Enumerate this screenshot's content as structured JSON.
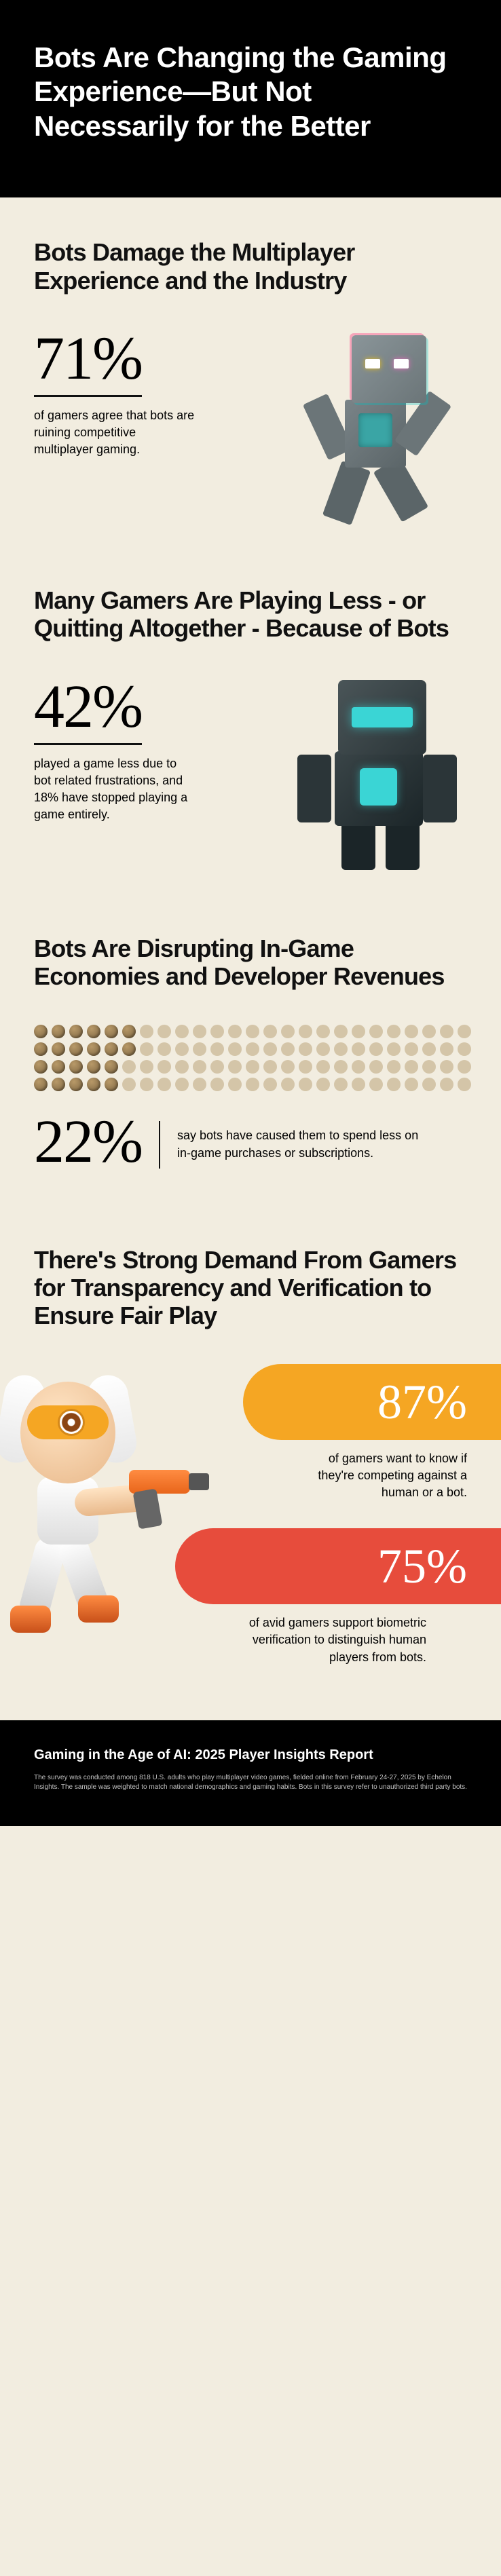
{
  "header": {
    "title": "Bots Are Changing the Gaming Experience—But Not Necessarily for the Better"
  },
  "section1": {
    "title": "Bots Damage the Multiplayer Experience and the Industry",
    "pct": "71%",
    "desc": "of gamers agree that bots are ruining competitive multiplayer gaming."
  },
  "section2": {
    "title": "Many Gamers Are Playing Less - or Quitting Altogether - Because of Bots",
    "pct": "42%",
    "desc": "played a game less due to bot related frustrations, and 18% have stopped playing a game entirely."
  },
  "section3": {
    "title": "Bots Are Disrupting In-Game Economies and Developer Revenues",
    "pct": "22%",
    "desc": "say bots have caused them to spend less on in-game purchases or subscriptions.",
    "dots_total": 100,
    "dots_active": 22,
    "dot_on_color": "#8a6d3b",
    "dot_off_color": "#d4c5a8"
  },
  "section4": {
    "title": "There's Strong Demand From Gamers for Transparency and Verification to Ensure Fair Play",
    "stat1_pct": "87%",
    "stat1_desc": "of gamers want to know if they're competing against a human or a bot.",
    "stat1_color": "#f5a623",
    "stat2_pct": "75%",
    "stat2_desc": "of avid gamers support biometric verification to distinguish human players from bots.",
    "stat2_color": "#e74c3c"
  },
  "footer": {
    "title": "Gaming in the Age of AI: 2025 Player Insights Report",
    "fineprint": "The survey was conducted among 818 U.S. adults who play multiplayer video games, fielded online from February 24-27, 2025 by Echelon Insights. The sample was weighted to match national demographics and gaming habits. Bots in this survey refer to unauthorized third party bots."
  },
  "colors": {
    "bg": "#f2ede0",
    "header_bg": "#000000",
    "text": "#111111"
  }
}
